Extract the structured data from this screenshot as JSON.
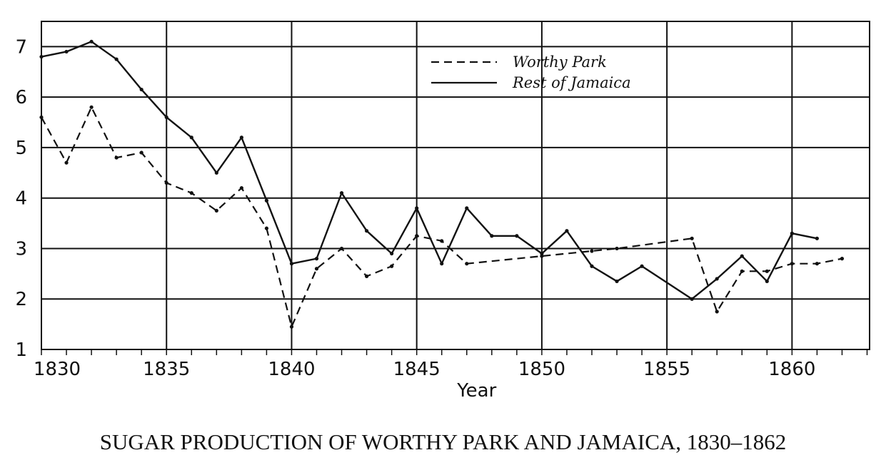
{
  "chart_data": {
    "type": "line",
    "title": "SUGAR PRODUCTION OF WORTHY PARK AND JAMAICA, 1830–1862",
    "xlabel": "Year",
    "ylabel": "",
    "xlim": [
      1830,
      1863
    ],
    "ylim": [
      1,
      7.5
    ],
    "x_ticks": [
      1830,
      1835,
      1840,
      1845,
      1850,
      1855,
      1860
    ],
    "y_ticks": [
      1,
      2,
      3,
      4,
      5,
      6,
      7
    ],
    "grid": true,
    "legend_position": "top-center",
    "series": [
      {
        "name": "Worthy Park",
        "style": "dashed",
        "points": [
          [
            1830,
            5.6
          ],
          [
            1831,
            4.7
          ],
          [
            1832,
            5.8
          ],
          [
            1833,
            4.8
          ],
          [
            1834,
            4.9
          ],
          [
            1835,
            4.3
          ],
          [
            1836,
            4.1
          ],
          [
            1837,
            3.75
          ],
          [
            1838,
            4.2
          ],
          [
            1839,
            3.4
          ],
          [
            1840,
            1.45
          ],
          [
            1841,
            2.6
          ],
          [
            1842,
            3.0
          ],
          [
            1843,
            2.45
          ],
          [
            1844,
            2.65
          ],
          [
            1845,
            3.25
          ],
          [
            1846,
            3.15
          ],
          [
            1847,
            2.7
          ],
          [
            1850,
            2.85
          ],
          [
            1852,
            2.95
          ],
          [
            1853,
            3.0
          ],
          [
            1856,
            3.2
          ],
          [
            1857,
            1.75
          ],
          [
            1858,
            2.55
          ],
          [
            1859,
            2.55
          ],
          [
            1860,
            2.7
          ],
          [
            1861,
            2.7
          ],
          [
            1862,
            2.8
          ]
        ]
      },
      {
        "name": "Rest of Jamaica",
        "style": "solid",
        "points": [
          [
            1830,
            6.8
          ],
          [
            1831,
            6.9
          ],
          [
            1832,
            7.1
          ],
          [
            1833,
            6.75
          ],
          [
            1834,
            6.15
          ],
          [
            1835,
            5.6
          ],
          [
            1836,
            5.2
          ],
          [
            1837,
            4.5
          ],
          [
            1838,
            5.2
          ],
          [
            1839,
            3.95
          ],
          [
            1840,
            2.7
          ],
          [
            1841,
            2.8
          ],
          [
            1842,
            4.1
          ],
          [
            1843,
            3.35
          ],
          [
            1844,
            2.9
          ],
          [
            1845,
            3.8
          ],
          [
            1846,
            2.7
          ],
          [
            1847,
            3.8
          ],
          [
            1848,
            3.25
          ],
          [
            1849,
            3.25
          ],
          [
            1850,
            2.9
          ],
          [
            1851,
            3.35
          ],
          [
            1852,
            2.65
          ],
          [
            1853,
            2.35
          ],
          [
            1854,
            2.65
          ],
          [
            1856,
            2.0
          ],
          [
            1857,
            2.4
          ],
          [
            1858,
            2.85
          ],
          [
            1859,
            2.35
          ],
          [
            1860,
            3.3
          ],
          [
            1861,
            3.2
          ]
        ]
      }
    ]
  }
}
